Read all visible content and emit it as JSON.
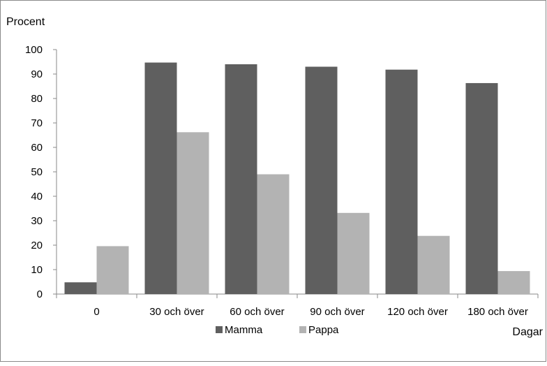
{
  "chart_data": {
    "type": "bar",
    "ylabel": "Procent",
    "xlabel": "Dagar",
    "ylim": [
      0,
      100
    ],
    "yticks": [
      0,
      10,
      20,
      30,
      40,
      50,
      60,
      70,
      80,
      90,
      100
    ],
    "categories": [
      "0",
      "30 och över",
      "60 och över",
      "90 och över",
      "120 och över",
      "180 och över"
    ],
    "series": [
      {
        "name": "Mamma",
        "color": "#5f5f5f",
        "values": [
          4.8,
          94.7,
          94.0,
          93.0,
          91.8,
          86.3
        ]
      },
      {
        "name": "Pappa",
        "color": "#b3b3b3",
        "values": [
          19.6,
          66.2,
          49.0,
          33.2,
          23.8,
          9.4
        ]
      }
    ],
    "grid": false,
    "legend": "bottom"
  }
}
